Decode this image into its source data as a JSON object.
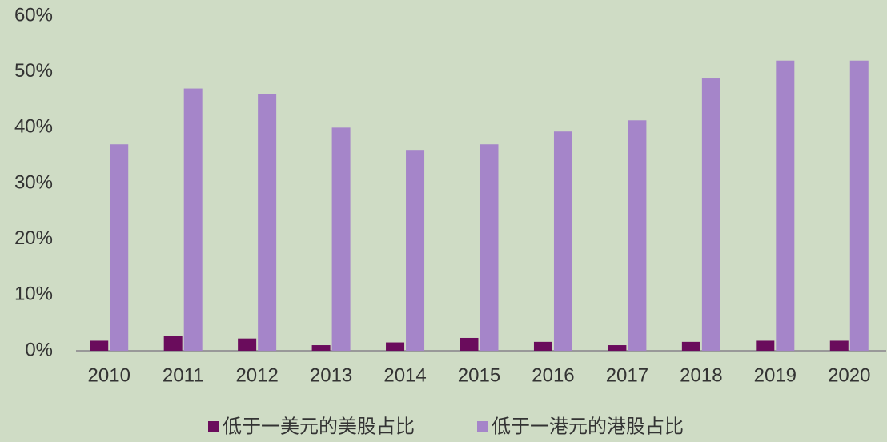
{
  "chart_data": {
    "type": "bar",
    "categories": [
      "2010",
      "2011",
      "2012",
      "2013",
      "2014",
      "2015",
      "2016",
      "2017",
      "2018",
      "2019",
      "2020"
    ],
    "series": [
      {
        "name": "低于一美元的美股占比",
        "color": "#6a0c5c",
        "values": [
          1.8,
          2.6,
          2.2,
          1.0,
          1.5,
          2.3,
          1.6,
          1.0,
          1.6,
          1.8,
          1.8
        ]
      },
      {
        "name": "低于一港元的港股占比",
        "color": "#a585c9",
        "values": [
          37,
          47,
          46,
          40,
          36,
          37,
          39.3,
          41.3,
          48.8,
          52,
          52
        ]
      }
    ],
    "ylim": [
      0,
      60
    ],
    "yticks": [
      {
        "value": 0,
        "label": "0%"
      },
      {
        "value": 10,
        "label": "10%"
      },
      {
        "value": 20,
        "label": "20%"
      },
      {
        "value": 30,
        "label": "30%"
      },
      {
        "value": 40,
        "label": "40%"
      },
      {
        "value": 50,
        "label": "50%"
      },
      {
        "value": 60,
        "label": "60%"
      }
    ],
    "grid": false,
    "legend": "bottom"
  }
}
